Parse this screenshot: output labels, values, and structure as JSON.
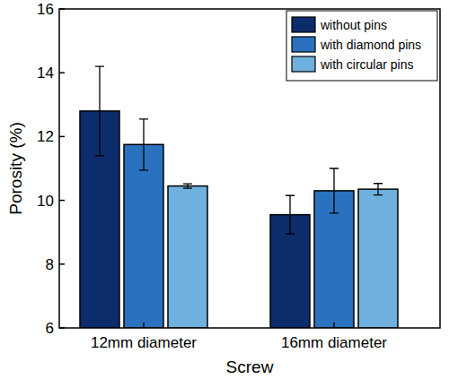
{
  "chart_data": {
    "type": "bar",
    "x_label": "Screw",
    "y_label": "Porosity (%)",
    "categories": [
      "12mm diameter",
      "16mm diameter"
    ],
    "series": [
      {
        "name": "without pins",
        "color": "#0c2c6c",
        "values": [
          12.8,
          9.55
        ],
        "errors": [
          1.4,
          0.6
        ]
      },
      {
        "name": "with diamond pins",
        "color": "#2a72bf",
        "values": [
          11.75,
          10.3
        ],
        "errors": [
          0.8,
          0.7
        ]
      },
      {
        "name": "with circular pins",
        "color": "#6eb0de",
        "values": [
          10.45,
          10.35
        ],
        "errors": [
          0.07,
          0.18
        ]
      }
    ],
    "ylim": [
      6,
      16
    ],
    "yticks": [
      6,
      8,
      10,
      12,
      14,
      16
    ],
    "legend": "upper right"
  }
}
